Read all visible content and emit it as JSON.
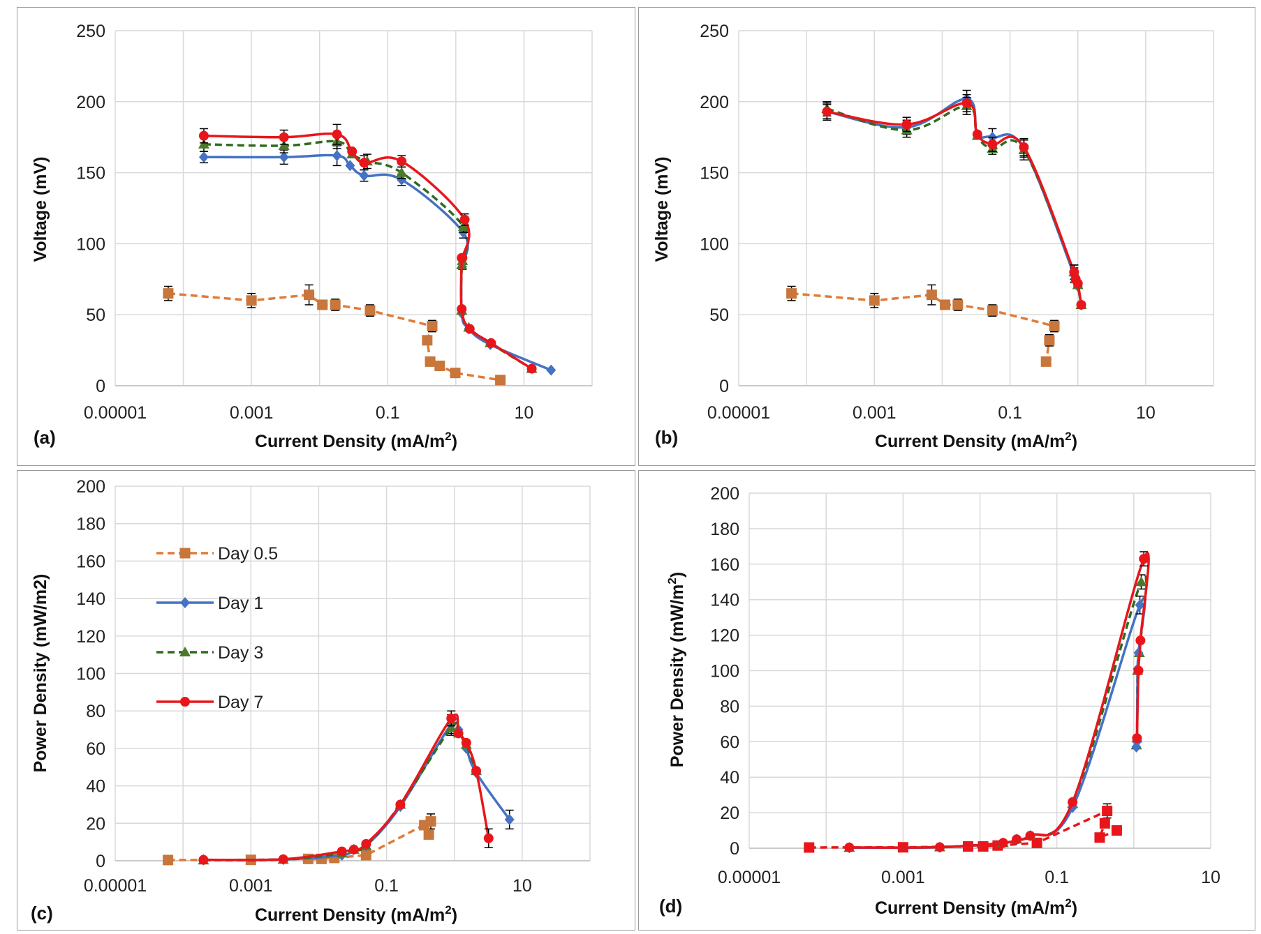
{
  "colors": {
    "day05": "#e07b39",
    "day05_marker": "#c8763b",
    "day1": "#4472c4",
    "day3": "#2e6b1f",
    "day3_marker": "#4b7a2a",
    "day7": "#e8161b",
    "grid": "#d9d9d9",
    "errorbar": "#000000"
  },
  "legend": {
    "panel": "c",
    "entries": [
      {
        "label": "Day 0.5",
        "series": "day05"
      },
      {
        "label": "Day 1",
        "series": "day1"
      },
      {
        "label": "Day 3",
        "series": "day3"
      },
      {
        "label": "Day 7",
        "series": "day7"
      }
    ]
  },
  "chart_data": [
    {
      "panel": "a",
      "label": "(a)",
      "type": "line",
      "xscale": "log",
      "xlim": [
        1e-05,
        100
      ],
      "xticks": [
        1e-05,
        0.001,
        0.1,
        10
      ],
      "xtick_labels": [
        "0.00001",
        "0.001",
        "0.1",
        "10"
      ],
      "ylim": [
        0,
        250
      ],
      "yticks": [
        0,
        50,
        100,
        150,
        200,
        250
      ],
      "ytick_labels": [
        "0",
        "50",
        "100",
        "150",
        "200",
        "250"
      ],
      "xlabel": "Current Density (mA/m",
      "xlabel_sup": "2",
      "xlabel_end": ")",
      "ylabel": "Voltage (mV)",
      "grid": true,
      "series": [
        {
          "key": "day05",
          "marker": "square",
          "dashed": true,
          "smooth": false,
          "x": [
            6e-05,
            0.001,
            0.007,
            0.011,
            0.017,
            0.055,
            0.45,
            0.38,
            0.42,
            0.58,
            0.98,
            4.5
          ],
          "y": [
            65,
            60,
            64,
            57,
            57,
            53,
            42,
            32,
            17,
            14,
            9,
            4
          ],
          "err": [
            5,
            5,
            7,
            3,
            4,
            4,
            4,
            0,
            0,
            0,
            0,
            0
          ]
        },
        {
          "key": "day1",
          "marker": "diamond",
          "dashed": false,
          "smooth": true,
          "x": [
            0.0002,
            0.003,
            0.018,
            0.028,
            0.045,
            0.16,
            1.28,
            1.25,
            1.22,
            1.22,
            1.55,
            3.2,
            25
          ],
          "y": [
            161,
            161,
            162,
            155,
            148,
            145,
            108,
            86,
            89,
            51,
            40,
            29,
            11
          ],
          "err": [
            4,
            5,
            7,
            0,
            4,
            4,
            4,
            4,
            0,
            0,
            0,
            0,
            0
          ]
        },
        {
          "key": "day3",
          "marker": "triangle",
          "dashed": true,
          "smooth": true,
          "x": [
            0.0002,
            0.003,
            0.018,
            0.03,
            0.05,
            0.16,
            1.3,
            1.25,
            1.22,
            1.22,
            1.55,
            3.2,
            13
          ],
          "y": [
            170,
            169,
            172,
            163,
            158,
            150,
            112,
            88,
            85,
            53,
            41,
            30,
            12
          ],
          "err": [
            5,
            5,
            5,
            0,
            5,
            4,
            4,
            4,
            0,
            0,
            0,
            0,
            0
          ]
        },
        {
          "key": "day7",
          "marker": "circle",
          "dashed": false,
          "smooth": true,
          "x": [
            0.0002,
            0.003,
            0.018,
            0.03,
            0.045,
            0.16,
            1.35,
            1.25,
            1.22,
            1.22,
            1.6,
            3.3,
            13
          ],
          "y": [
            176,
            175,
            177,
            165,
            157,
            158,
            117,
            90,
            90,
            54,
            40,
            30,
            12
          ],
          "err": [
            5,
            5,
            7,
            0,
            5,
            4,
            4,
            0,
            0,
            0,
            0,
            0,
            0
          ]
        }
      ]
    },
    {
      "panel": "b",
      "label": "(b)",
      "type": "line",
      "xscale": "log",
      "xlim": [
        1e-05,
        100
      ],
      "xticks": [
        1e-05,
        0.001,
        0.1,
        10
      ],
      "xtick_labels": [
        "0.00001",
        "0.001",
        "0.1",
        "10"
      ],
      "ylim": [
        0,
        250
      ],
      "yticks": [
        0,
        50,
        100,
        150,
        200,
        250
      ],
      "ytick_labels": [
        "0",
        "50",
        "100",
        "150",
        "200",
        "250"
      ],
      "xlabel": "Current Density (mA/m",
      "xlabel_sup": "2",
      "xlabel_end": ")",
      "ylabel": "Voltage (mV)",
      "grid": true,
      "series": [
        {
          "key": "day05",
          "marker": "square",
          "dashed": true,
          "smooth": false,
          "x": [
            6e-05,
            0.001,
            0.007,
            0.011,
            0.017,
            0.055,
            0.45,
            0.38,
            0.34
          ],
          "y": [
            65,
            60,
            64,
            57,
            57,
            53,
            42,
            32,
            17
          ],
          "err": [
            5,
            5,
            7,
            3,
            4,
            4,
            4,
            4,
            0
          ]
        },
        {
          "key": "day1",
          "marker": "diamond",
          "dashed": false,
          "smooth": true,
          "x": [
            0.0002,
            0.003,
            0.023,
            0.033,
            0.055,
            0.16,
            0.88,
            0.93,
            1.0,
            1.12
          ],
          "y": [
            193,
            182,
            202,
            177,
            175,
            167,
            78,
            74,
            70,
            57
          ],
          "err": [
            6,
            5,
            6,
            0,
            6,
            6,
            5,
            0,
            0,
            0
          ]
        },
        {
          "key": "day3",
          "marker": "triangle",
          "dashed": true,
          "smooth": true,
          "x": [
            0.0002,
            0.003,
            0.023,
            0.033,
            0.055,
            0.16,
            0.88,
            0.93,
            1.0,
            1.12
          ],
          "y": [
            195,
            180,
            197,
            176,
            167,
            166,
            80,
            75,
            71,
            57
          ],
          "err": [
            5,
            5,
            6,
            0,
            4,
            7,
            5,
            0,
            0,
            0
          ]
        },
        {
          "key": "day7",
          "marker": "circle",
          "dashed": false,
          "smooth": true,
          "x": [
            0.0002,
            0.003,
            0.023,
            0.033,
            0.055,
            0.16,
            0.88,
            0.93,
            1.0,
            1.12
          ],
          "y": [
            193,
            184,
            199,
            177,
            170,
            168,
            80,
            75,
            72,
            57
          ],
          "err": [
            5,
            5,
            6,
            0,
            5,
            6,
            5,
            0,
            0,
            0
          ]
        }
      ]
    },
    {
      "panel": "c",
      "label": "(c)",
      "type": "line",
      "xscale": "log",
      "xlim": [
        1e-05,
        100
      ],
      "xticks": [
        1e-05,
        0.001,
        0.1,
        10
      ],
      "xtick_labels": [
        "0.00001",
        "0.001",
        "0.1",
        "10"
      ],
      "ylim": [
        0,
        200
      ],
      "yticks": [
        0,
        20,
        40,
        60,
        80,
        100,
        120,
        140,
        160,
        180,
        200
      ],
      "ytick_labels": [
        "0",
        "20",
        "40",
        "60",
        "80",
        "100",
        "120",
        "140",
        "160",
        "180",
        "200"
      ],
      "xlabel": "Current Density (mA/m",
      "xlabel_sup": "2",
      "xlabel_end": ")",
      "ylabel": "Power Density (mW/m2)",
      "grid": true,
      "series": [
        {
          "key": "day05",
          "marker": "square",
          "dashed": true,
          "smooth": false,
          "x": [
            6e-05,
            0.001,
            0.007,
            0.011,
            0.017,
            0.05,
            0.45,
            0.42,
            0.36
          ],
          "y": [
            0.4,
            0.5,
            1,
            1,
            1.5,
            3,
            21,
            14,
            19
          ],
          "err": [
            0,
            0,
            0,
            0,
            0,
            0,
            4,
            0,
            0
          ]
        },
        {
          "key": "day1",
          "marker": "diamond",
          "dashed": false,
          "smooth": true,
          "x": [
            0.0002,
            0.003,
            0.022,
            0.033,
            0.05,
            0.16,
            0.9,
            1.15,
            1.5,
            2.1,
            6.5
          ],
          "y": [
            0.5,
            0.7,
            3,
            6,
            8,
            29,
            73,
            70,
            60,
            47,
            22
          ],
          "err": [
            0,
            0,
            0,
            0,
            0,
            0,
            5,
            0,
            0,
            0,
            5
          ]
        },
        {
          "key": "day3",
          "marker": "triangle",
          "dashed": true,
          "smooth": true,
          "x": [
            0.0002,
            0.003,
            0.022,
            0.033,
            0.05,
            0.16,
            0.9,
            1.15,
            1.5,
            2.1
          ],
          "y": [
            0.3,
            0.6,
            4,
            6,
            8,
            30,
            71,
            68,
            62,
            48
          ],
          "err": [
            0,
            0,
            0,
            0,
            0,
            0,
            4,
            0,
            0,
            0
          ]
        },
        {
          "key": "day7",
          "marker": "circle",
          "dashed": false,
          "smooth": true,
          "x": [
            0.0002,
            0.003,
            0.022,
            0.033,
            0.05,
            0.16,
            0.9,
            1.15,
            1.5,
            2.1,
            3.2
          ],
          "y": [
            0.5,
            0.8,
            5,
            6,
            9,
            30,
            76,
            68,
            63,
            48,
            12
          ],
          "err": [
            0,
            0,
            0,
            0,
            0,
            0,
            4,
            0,
            0,
            0,
            5
          ]
        }
      ]
    },
    {
      "panel": "d",
      "label": "(d)",
      "type": "line",
      "xscale": "log",
      "xlim": [
        1e-05,
        10
      ],
      "xticks": [
        1e-05,
        0.001,
        0.1,
        10
      ],
      "xtick_labels": [
        "0.00001",
        "0.001",
        "0.1",
        "10"
      ],
      "ylim": [
        0,
        200
      ],
      "yticks": [
        0,
        20,
        40,
        60,
        80,
        100,
        120,
        140,
        160,
        180,
        200
      ],
      "ytick_labels": [
        "0",
        "20",
        "40",
        "60",
        "80",
        "100",
        "120",
        "140",
        "160",
        "180",
        "200"
      ],
      "xlabel": "Current Density (mA/m",
      "xlabel_sup": "2",
      "xlabel_end": ")",
      "ylabel": "Power Density (mW/m",
      "ylabel_sup": "2",
      "ylabel_end": ")",
      "grid": true,
      "series": [
        {
          "key": "day7",
          "marker": "square",
          "dashed": true,
          "smooth": false,
          "label_override": "day05",
          "x": [
            6e-05,
            0.001,
            0.007,
            0.011,
            0.017,
            0.055,
            0.45,
            0.42,
            0.36,
            0.6
          ],
          "y": [
            0.4,
            0.5,
            1,
            1,
            1.5,
            3,
            21,
            14,
            6,
            10
          ],
          "err": [
            0,
            0,
            0,
            0,
            0,
            0,
            4,
            0,
            0,
            0
          ]
        },
        {
          "key": "day3",
          "marker": "triangle",
          "dashed": true,
          "smooth": true,
          "x": [
            0.0002,
            0.003,
            0.02,
            0.03,
            0.045,
            0.16,
            1.25,
            1.18,
            1.12,
            1.1,
            1.08
          ],
          "y": [
            0.3,
            0.6,
            3,
            5,
            7,
            25,
            150,
            110,
            100,
            62,
            58
          ],
          "err": [
            0,
            0,
            0,
            0,
            0,
            0,
            4,
            0,
            0,
            0,
            0
          ]
        },
        {
          "key": "day1",
          "marker": "diamond",
          "dashed": false,
          "smooth": true,
          "x": [
            0.0002,
            0.003,
            0.02,
            0.03,
            0.045,
            0.16,
            1.2,
            1.15,
            1.12,
            1.1,
            1.08
          ],
          "y": [
            0.3,
            0.5,
            3,
            5,
            7,
            23,
            137,
            110,
            101,
            60,
            57
          ],
          "err": [
            0,
            0,
            0,
            0,
            0,
            0,
            5,
            0,
            0,
            0,
            0
          ]
        },
        {
          "key": "day7",
          "marker": "circle",
          "dashed": false,
          "smooth": true,
          "x": [
            0.0002,
            0.003,
            0.02,
            0.03,
            0.045,
            0.16,
            1.35,
            1.22,
            1.15,
            1.1
          ],
          "y": [
            0.4,
            0.6,
            3,
            5,
            7,
            26,
            163,
            117,
            100,
            62
          ],
          "err": [
            0,
            0,
            0,
            0,
            0,
            0,
            4,
            0,
            0,
            0
          ]
        }
      ]
    }
  ]
}
